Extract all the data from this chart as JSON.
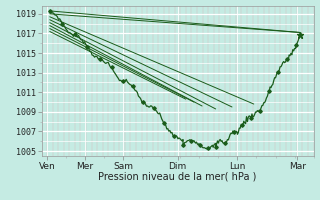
{
  "title": "",
  "xlabel": "Pression niveau de la mer( hPa )",
  "bg_color": "#c5ebe3",
  "line_color": "#1a5c1a",
  "ylim": [
    1004.5,
    1019.8
  ],
  "yticks": [
    1005,
    1007,
    1009,
    1011,
    1013,
    1015,
    1017,
    1019
  ],
  "x_labels": [
    "Ven",
    "Mer",
    "Sam",
    "Dim",
    "Lun",
    "Mar"
  ],
  "x_positions": [
    0,
    0.7,
    1.4,
    2.4,
    3.5,
    4.6
  ],
  "forecast_lines": [
    [
      0.05,
      1019.3,
      4.65,
      1017.1
    ],
    [
      0.05,
      1019.0,
      4.65,
      1017.1
    ],
    [
      0.05,
      1018.7,
      3.8,
      1009.8
    ],
    [
      0.05,
      1018.4,
      3.4,
      1009.5
    ],
    [
      0.05,
      1018.1,
      3.1,
      1009.3
    ],
    [
      0.05,
      1017.8,
      2.85,
      1009.6
    ],
    [
      0.05,
      1017.5,
      2.7,
      1010.0
    ],
    [
      0.05,
      1017.2,
      2.55,
      1010.3
    ]
  ],
  "xlim": [
    -0.1,
    4.9
  ]
}
